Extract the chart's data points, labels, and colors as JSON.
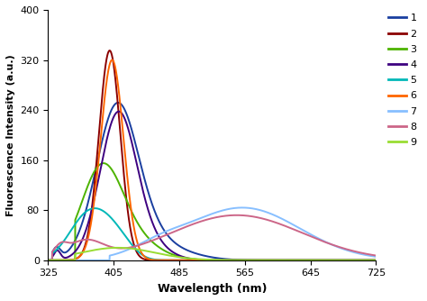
{
  "title": "",
  "xlabel": "Wavelength (nm)",
  "ylabel": "Fluorescence Intensity (a.u.)",
  "xlim": [
    325,
    725
  ],
  "ylim": [
    0,
    400
  ],
  "yticks": [
    0,
    80,
    160,
    240,
    320,
    400
  ],
  "xticks": [
    325,
    405,
    485,
    565,
    645,
    725
  ],
  "background_color": "#ffffff",
  "series": [
    {
      "label": "1",
      "color": "#1a3fa0"
    },
    {
      "label": "2",
      "color": "#8b0000"
    },
    {
      "label": "3",
      "color": "#4db300"
    },
    {
      "label": "4",
      "color": "#3d0080"
    },
    {
      "label": "5",
      "color": "#00b8b8"
    },
    {
      "label": "6",
      "color": "#ff6600"
    },
    {
      "label": "7",
      "color": "#87bfff"
    },
    {
      "label": "8",
      "color": "#cc6688"
    },
    {
      "label": "9",
      "color": "#99dd33"
    }
  ]
}
